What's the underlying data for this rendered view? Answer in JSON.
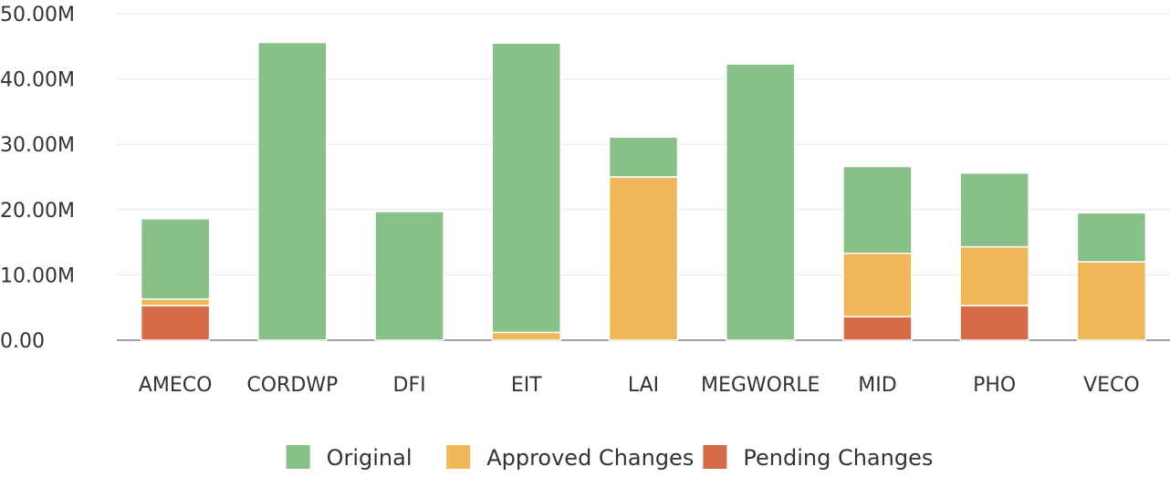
{
  "chart_data": {
    "type": "bar",
    "stacked": true,
    "categories": [
      "AMECO",
      "CORDWP",
      "DFI",
      "EIT",
      "LAI",
      "MEGWORLE",
      "MID",
      "PHO",
      "VECO"
    ],
    "series": [
      {
        "name": "Pending Changes",
        "color": "#d66b4a",
        "values": [
          5.3,
          0,
          0,
          0,
          0,
          0,
          3.6,
          5.3,
          0
        ]
      },
      {
        "name": "Approved Changes",
        "color": "#eeb85a",
        "values": [
          1.0,
          0,
          0,
          1.2,
          25.0,
          0,
          9.7,
          9.0,
          12.0
        ]
      },
      {
        "name": "Original",
        "color": "#89c087",
        "values": [
          12.3,
          45.6,
          19.7,
          44.3,
          6.1,
          42.3,
          13.3,
          11.3,
          7.5
        ]
      }
    ],
    "legend_order": [
      "Original",
      "Approved Changes",
      "Pending Changes"
    ],
    "y_ticks": [
      "0.00",
      "10.00M",
      "20.00M",
      "30.00M",
      "40.00M",
      "50.00M"
    ],
    "ylim": [
      0,
      50
    ],
    "grid": true,
    "legend_position": "bottom"
  }
}
